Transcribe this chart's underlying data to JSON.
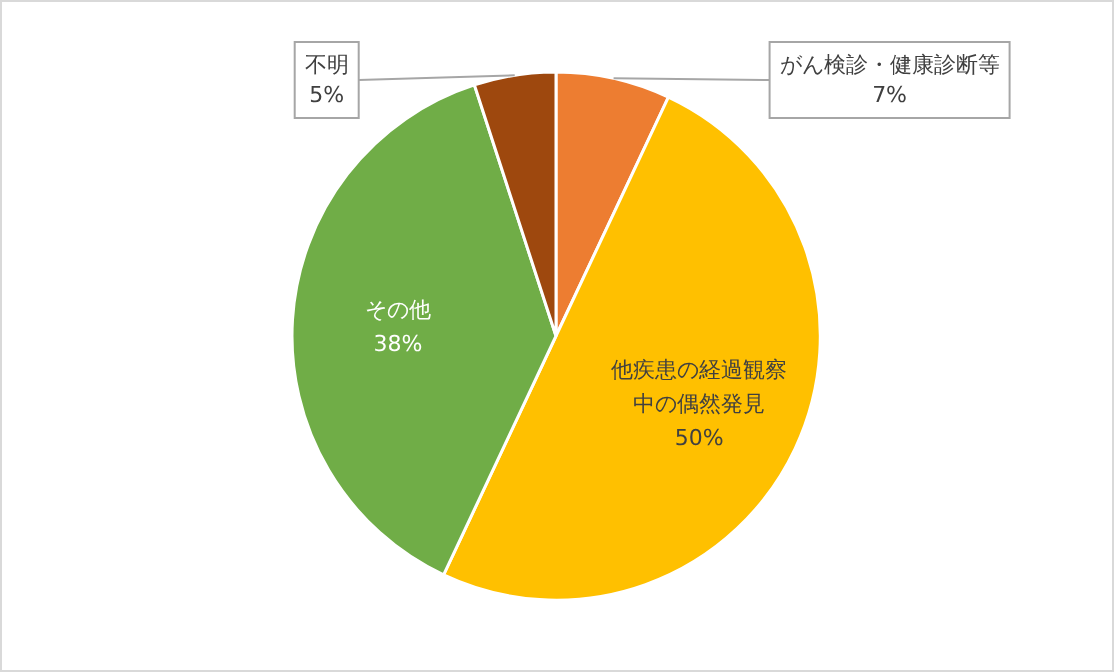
{
  "chart_data": {
    "type": "pie",
    "categories": [
      "がん検診・健康診断等",
      "他疾患の経過観察中の偶然発見",
      "その他",
      "不明"
    ],
    "values": [
      7,
      50,
      38,
      5
    ],
    "value_labels": [
      "7%",
      "50%",
      "38%",
      "5%"
    ],
    "colors": [
      "#ed7d31",
      "#ffc000",
      "#70ad47",
      "#9e480e"
    ]
  }
}
